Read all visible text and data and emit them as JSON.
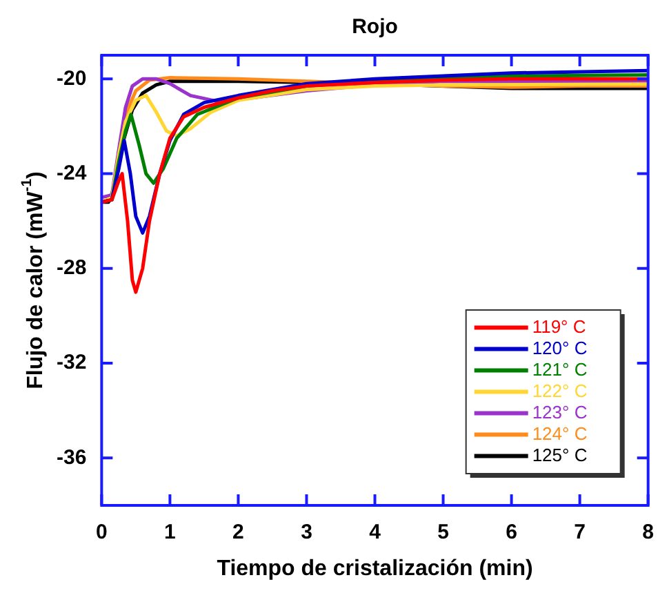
{
  "chart_data": {
    "type": "line",
    "title": "Rojo",
    "xlabel": "Tiempo de cristalización (min)",
    "ylabel": "Flujo de calor (mW$^{-1}$)",
    "xlim": [
      0,
      8
    ],
    "xticks": [
      0,
      1,
      2,
      3,
      4,
      5,
      6,
      7,
      8
    ],
    "ylim": [
      -38,
      -19
    ],
    "yticks": [
      -20,
      -24,
      -28,
      -32,
      -36
    ],
    "grid": false,
    "legend": "bottom right",
    "marker": "none",
    "line_style": "solid",
    "series": [
      {
        "name": "119° C",
        "color": "#ff0000",
        "x": [
          0,
          0.15,
          0.25,
          0.3,
          0.38,
          0.45,
          0.5,
          0.6,
          0.7,
          0.85,
          1,
          1.2,
          1.5,
          2,
          2.5,
          3,
          4,
          5,
          6,
          8
        ],
        "values": [
          -25.2,
          -25.1,
          -24.3,
          -24.0,
          -26,
          -28.5,
          -29.0,
          -28,
          -26,
          -24,
          -22.5,
          -21.6,
          -21.2,
          -20.8,
          -20.5,
          -20.3,
          -20.15,
          -20.05,
          -20.0,
          -20.0
        ]
      },
      {
        "name": "120° C",
        "color": "#0000cc",
        "x": [
          0,
          0.15,
          0.25,
          0.33,
          0.42,
          0.5,
          0.6,
          0.7,
          0.85,
          1,
          1.2,
          1.5,
          2,
          3,
          4,
          6,
          8
        ],
        "values": [
          -25.2,
          -25.1,
          -23.8,
          -22.6,
          -24,
          -25.8,
          -26.5,
          -25.8,
          -24,
          -22.6,
          -21.5,
          -21,
          -20.7,
          -20.2,
          -20,
          -19.75,
          -19.65
        ]
      },
      {
        "name": "121° C",
        "color": "#008000",
        "x": [
          0,
          0.15,
          0.25,
          0.35,
          0.43,
          0.55,
          0.65,
          0.76,
          0.9,
          1.1,
          1.4,
          2,
          3,
          4,
          6,
          8
        ],
        "values": [
          -25.2,
          -25.1,
          -23.5,
          -22.2,
          -21.5,
          -22.8,
          -24,
          -24.4,
          -23.8,
          -22.5,
          -21.5,
          -20.8,
          -20.3,
          -20.1,
          -19.88,
          -19.83
        ]
      },
      {
        "name": "122° C",
        "color": "#ffd633",
        "x": [
          0,
          0.15,
          0.25,
          0.35,
          0.5,
          0.65,
          0.8,
          0.95,
          1.1,
          1.3,
          1.6,
          2,
          3,
          4,
          5,
          8
        ],
        "values": [
          -25.2,
          -25,
          -23.2,
          -21.8,
          -20.9,
          -20.7,
          -21.4,
          -22.2,
          -22.4,
          -22.1,
          -21.4,
          -20.9,
          -20.45,
          -20.3,
          -20.25,
          -20.22
        ]
      },
      {
        "name": "123° C",
        "color": "#9933cc",
        "x": [
          0,
          0.15,
          0.25,
          0.35,
          0.45,
          0.6,
          0.8,
          1,
          1.3,
          1.7,
          2.2,
          3,
          4,
          5,
          6,
          8
        ],
        "values": [
          -25,
          -24.9,
          -23,
          -21.2,
          -20.3,
          -20,
          -20,
          -20.2,
          -20.7,
          -20.95,
          -20.8,
          -20.5,
          -20.25,
          -20.1,
          -20.12,
          -20.12
        ]
      },
      {
        "name": "124° C",
        "color": "#ff8c1a",
        "x": [
          0,
          0.15,
          0.25,
          0.35,
          0.5,
          0.7,
          1,
          2,
          3,
          4,
          5,
          6,
          7,
          8
        ],
        "values": [
          -25.2,
          -25.1,
          -23.2,
          -21.5,
          -20.5,
          -20.05,
          -19.95,
          -20.0,
          -20.1,
          -20.2,
          -20.3,
          -20.35,
          -20.3,
          -20.3
        ]
      },
      {
        "name": "125° C",
        "color": "#000000",
        "x": [
          0,
          0.1,
          0.2,
          0.3,
          0.45,
          0.6,
          0.8,
          1,
          2,
          4,
          6,
          8
        ],
        "values": [
          -25.2,
          -25.2,
          -24.5,
          -22.8,
          -21.3,
          -20.6,
          -20.25,
          -20.1,
          -20.1,
          -20.2,
          -20.4,
          -20.4
        ]
      }
    ]
  }
}
